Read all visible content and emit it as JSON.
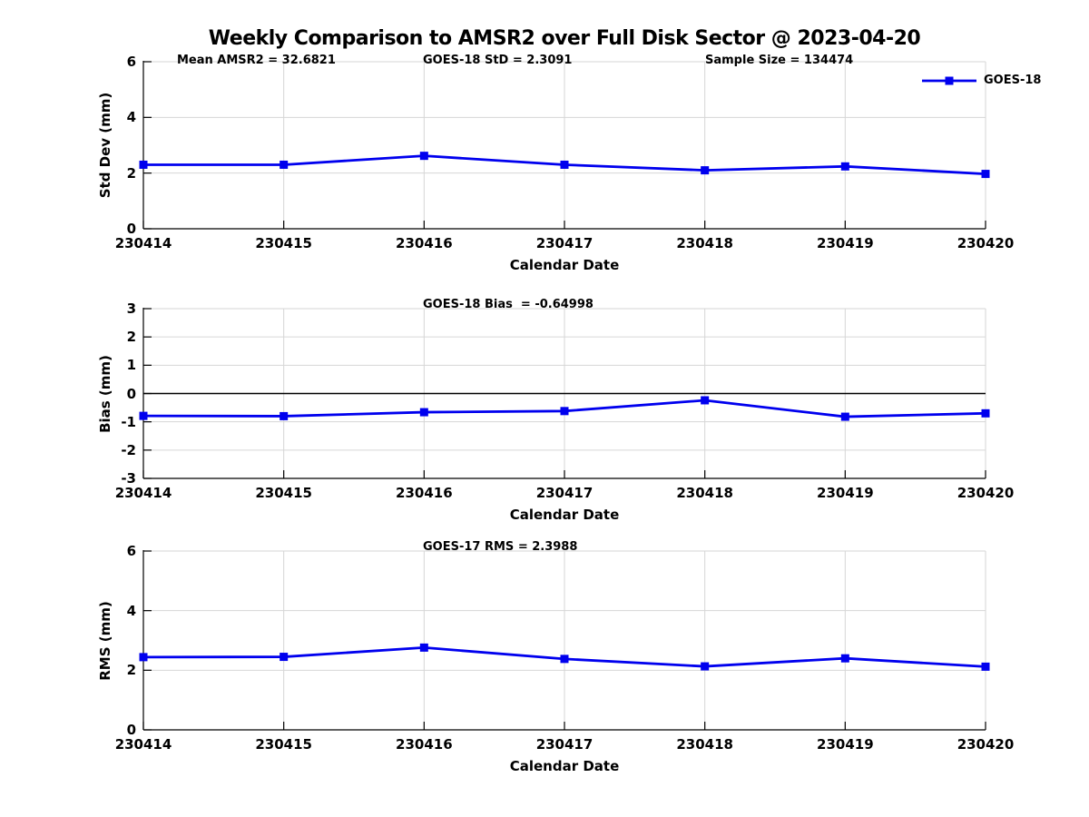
{
  "title": "Weekly Comparison to AMSR2 over Full Disk Sector @ 2023-04-20",
  "legend": {
    "label": "GOES-18",
    "position": "top-right",
    "marker": "square"
  },
  "colors": {
    "series": "#0000EE",
    "grid": "#D6D6D6",
    "axis": "#000000",
    "zero_line": "#000000",
    "text": "#000000",
    "background": "#FFFFFF"
  },
  "chart_data": [
    {
      "type": "line",
      "categories": [
        "230414",
        "230415",
        "230416",
        "230417",
        "230418",
        "230419",
        "230420"
      ],
      "series": [
        {
          "name": "GOES-18",
          "values": [
            2.3,
            2.3,
            2.62,
            2.3,
            2.1,
            2.24,
            1.97
          ]
        }
      ],
      "xlabel": "Calendar Date",
      "ylabel": "Std Dev (mm)",
      "ylim": [
        0,
        6
      ],
      "yticks": [
        0,
        2,
        4,
        6
      ],
      "grid": true,
      "legend_position": "top-right",
      "marker": "square",
      "annotations": [
        {
          "text": "Mean AMSR2 = 32.6821"
        },
        {
          "text": "GOES-18 StD = 2.3091"
        },
        {
          "text": "Sample Size = 134474"
        }
      ]
    },
    {
      "type": "line",
      "categories": [
        "230414",
        "230415",
        "230416",
        "230417",
        "230418",
        "230419",
        "230420"
      ],
      "series": [
        {
          "name": "GOES-18",
          "values": [
            -0.79,
            -0.8,
            -0.66,
            -0.62,
            -0.24,
            -0.82,
            -0.7
          ]
        }
      ],
      "xlabel": "Calendar Date",
      "ylabel": "Bias (mm)",
      "ylim": [
        -3,
        3
      ],
      "yticks": [
        -3,
        -2,
        -1,
        0,
        1,
        2,
        3
      ],
      "grid": true,
      "zero_line": true,
      "marker": "square",
      "annotations": [
        {
          "text": "GOES-18 Bias  = -0.64998"
        }
      ]
    },
    {
      "type": "line",
      "categories": [
        "230414",
        "230415",
        "230416",
        "230417",
        "230418",
        "230419",
        "230420"
      ],
      "series": [
        {
          "name": "GOES-18",
          "values": [
            2.44,
            2.45,
            2.76,
            2.38,
            2.13,
            2.4,
            2.12
          ]
        }
      ],
      "xlabel": "Calendar Date",
      "ylabel": "RMS (mm)",
      "ylim": [
        0,
        6
      ],
      "yticks": [
        0,
        2,
        4,
        6
      ],
      "grid": true,
      "marker": "square",
      "annotations": [
        {
          "text": "GOES-17 RMS = 2.3988"
        }
      ]
    }
  ]
}
